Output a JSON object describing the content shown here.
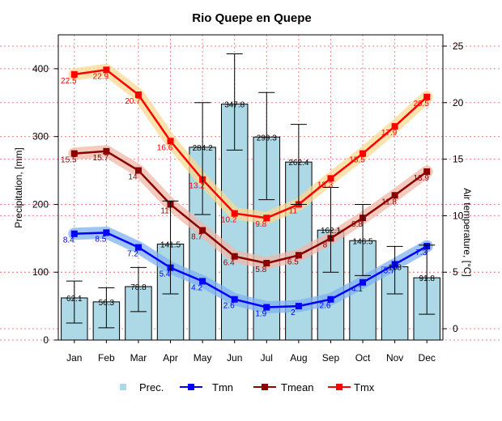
{
  "chart_data": {
    "type": "bar+line",
    "title": "Rio Quepe en Quepe",
    "categories": [
      "Jan",
      "Feb",
      "Mar",
      "Apr",
      "May",
      "Jun",
      "Jul",
      "Aug",
      "Sep",
      "Oct",
      "Nov",
      "Dec"
    ],
    "y_left": {
      "label": "Precipitation, [mm]",
      "lim": [
        0,
        450
      ],
      "ticks": [
        0,
        100,
        200,
        300,
        400
      ]
    },
    "y_right": {
      "label": "Air temperature, [°C]",
      "lim": [
        -1,
        26
      ],
      "ticks": [
        0,
        5,
        10,
        15,
        20,
        25
      ]
    },
    "grid": true,
    "legend_position": "bottom",
    "precipitation": {
      "name": "Prec.",
      "color": "#add8e6",
      "values": [
        62.1,
        56.3,
        78.8,
        141.5,
        284.2,
        347.8,
        299.3,
        262.4,
        162.1,
        146.5,
        108.0,
        91.8
      ],
      "labels": [
        "62.1",
        "56.3",
        "78.8",
        "141.5",
        "284.2",
        "347.8",
        "299.3",
        "262.4",
        "162.1",
        "146.5",
        "108",
        "91.8"
      ],
      "error_low": [
        25,
        18,
        42,
        68,
        185,
        280,
        207,
        200,
        100,
        95,
        68,
        38
      ],
      "error_high": [
        87,
        77,
        107,
        205,
        350,
        422,
        365,
        318,
        225,
        200,
        138,
        140
      ]
    },
    "temperature_series": [
      {
        "name": "Tmn",
        "color": "#0000ff",
        "band_color": "#7fb2f0",
        "values": [
          8.4,
          8.5,
          7.2,
          5.4,
          4.2,
          2.6,
          1.9,
          2.0,
          2.6,
          4.1,
          5.7,
          7.3
        ],
        "labels": [
          "8.4",
          "8.5",
          "7.2",
          "5.4",
          "4.2",
          "2.6",
          "1.9",
          "2",
          "2.6",
          "4.1",
          "5.7",
          "7.3"
        ]
      },
      {
        "name": "Tmean",
        "color": "#8b0000",
        "band_color": "#f0b8a8",
        "values": [
          15.5,
          15.7,
          14.0,
          11.0,
          8.7,
          6.4,
          5.8,
          6.5,
          8.0,
          9.8,
          11.8,
          13.9
        ],
        "labels": [
          "15.5",
          "15.7",
          "14",
          "11",
          "8.7",
          "6.4",
          "5.8",
          "6.5",
          "8",
          "9.8",
          "11.8",
          "13.9"
        ]
      },
      {
        "name": "Tmx",
        "color": "#ff0000",
        "band_color": "#fbd890",
        "values": [
          22.5,
          22.9,
          20.7,
          16.6,
          13.2,
          10.2,
          9.8,
          11.0,
          13.3,
          15.5,
          17.9,
          20.5
        ],
        "labels": [
          "22.5",
          "22.9",
          "20.7",
          "16.6",
          "13.2",
          "10.2",
          "9.8",
          "11",
          "13.3",
          "15.5",
          "17.9",
          "20.5"
        ]
      }
    ]
  }
}
